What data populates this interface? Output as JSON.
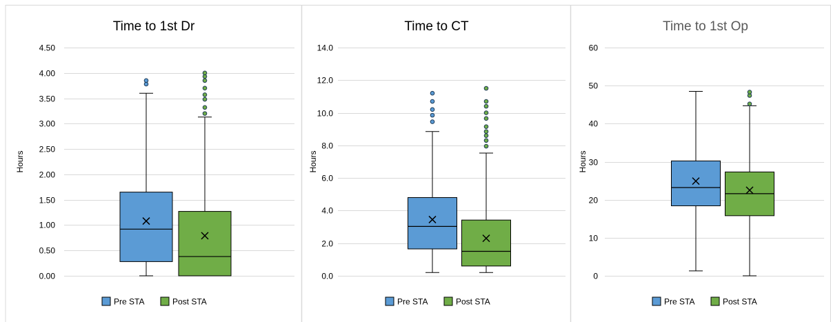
{
  "chart_data": [
    {
      "type": "box",
      "title": "Time to 1st Dr",
      "ylabel": "Hours",
      "ylim": [
        0,
        4.5
      ],
      "ytick_step": 0.5,
      "ytick_decimals": 2,
      "grid": true,
      "legend_position": "bottom",
      "series": [
        {
          "name": "Pre STA",
          "color": "#5b9bd5",
          "min": 0.0,
          "q1": 0.28,
          "median": 0.92,
          "q3": 1.65,
          "max": 3.6,
          "mean": 1.08,
          "outliers": [
            3.78,
            3.85
          ]
        },
        {
          "name": "Post STA",
          "color": "#70ad47",
          "min": 0.0,
          "q1": 0.0,
          "median": 0.38,
          "q3": 1.27,
          "max": 3.13,
          "mean": 0.79,
          "outliers": [
            3.2,
            3.32,
            3.48,
            3.57,
            3.7,
            3.85,
            3.93,
            4.0
          ]
        }
      ]
    },
    {
      "type": "box",
      "title": "Time to CT",
      "ylabel": "Hours",
      "ylim": [
        0,
        14
      ],
      "ytick_step": 2,
      "ytick_decimals": 1,
      "grid": true,
      "legend_position": "bottom",
      "series": [
        {
          "name": "Pre STA",
          "color": "#5b9bd5",
          "min": 0.2,
          "q1": 1.65,
          "median": 3.03,
          "q3": 4.8,
          "max": 8.85,
          "mean": 3.45,
          "outliers": [
            9.45,
            9.85,
            10.2,
            10.7,
            11.2
          ]
        },
        {
          "name": "Post STA",
          "color": "#70ad47",
          "min": 0.2,
          "q1": 0.6,
          "median": 1.5,
          "q3": 3.42,
          "max": 7.53,
          "mean": 2.3,
          "outliers": [
            7.95,
            8.3,
            8.6,
            8.85,
            9.15,
            9.65,
            10.0,
            10.4,
            10.7,
            11.5
          ]
        }
      ]
    },
    {
      "type": "box",
      "title": "Time to 1st Op",
      "ylabel": "Hours",
      "ylim": [
        0,
        60
      ],
      "ytick_step": 10,
      "ytick_decimals": 0,
      "grid": true,
      "legend_position": "bottom",
      "series": [
        {
          "name": "Pre STA",
          "color": "#5b9bd5",
          "min": 1.3,
          "q1": 18.4,
          "median": 23.2,
          "q3": 30.2,
          "max": 48.5,
          "mean": 24.9,
          "outliers": []
        },
        {
          "name": "Post STA",
          "color": "#70ad47",
          "min": 0.0,
          "q1": 15.8,
          "median": 21.6,
          "q3": 27.3,
          "max": 44.7,
          "mean": 22.5,
          "outliers": [
            45.2,
            47.4,
            48.3
          ]
        }
      ]
    }
  ]
}
